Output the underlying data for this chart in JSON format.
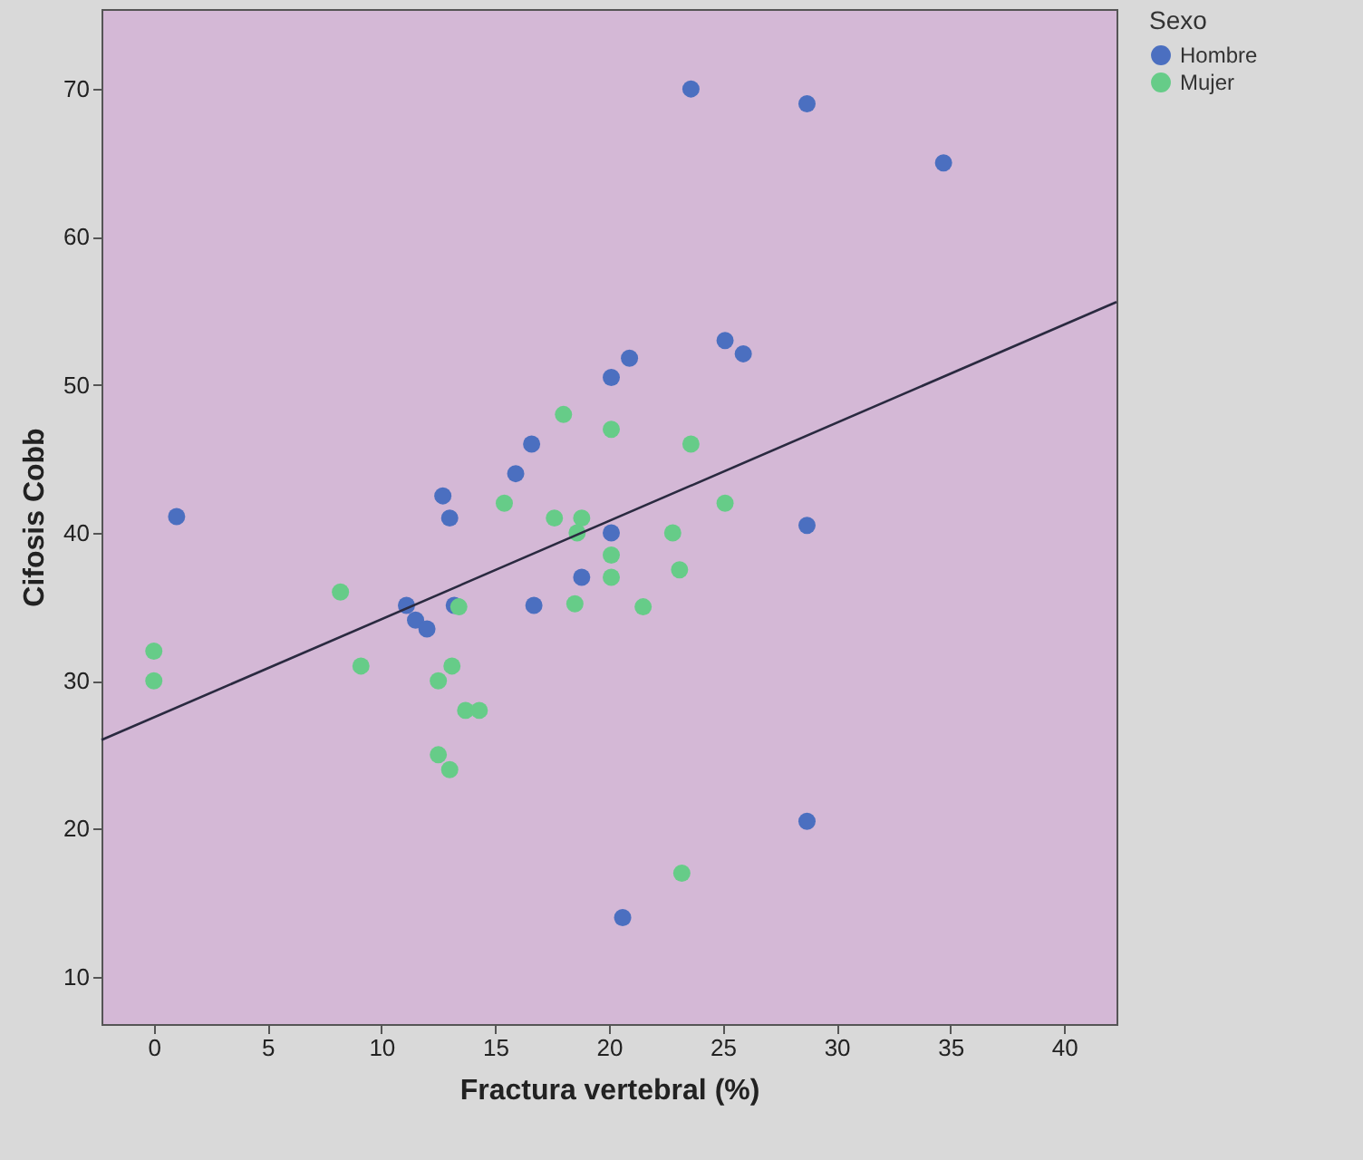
{
  "chart_data": {
    "type": "scatter",
    "xlabel": "Fractura vertebral (%)",
    "ylabel": "Cifosis Cobb",
    "legend_title": "Sexo",
    "legend": "top right",
    "grid": false,
    "marker": "circle",
    "xlim": [
      -2.3,
      42.3
    ],
    "ylim": [
      6.8,
      75.4
    ],
    "xticks": [
      0,
      5,
      10,
      15,
      20,
      25,
      30,
      35,
      40
    ],
    "yticks": [
      10,
      20,
      30,
      40,
      50,
      60,
      70
    ],
    "series": [
      {
        "name": "Hombre",
        "color": "#4b6fc0",
        "x": [
          1.0,
          11.1,
          11.5,
          12.0,
          12.7,
          13.0,
          13.2,
          15.9,
          16.6,
          16.7,
          18.8,
          20.1,
          20.1,
          20.6,
          20.9,
          23.6,
          25.1,
          25.9,
          28.7,
          28.7,
          28.7,
          34.7
        ],
        "values": [
          41.1,
          35.1,
          34.1,
          33.5,
          42.5,
          41.0,
          35.1,
          44.0,
          46.0,
          35.1,
          37.0,
          40.0,
          50.5,
          14.0,
          51.8,
          70.0,
          53.0,
          52.1,
          69.0,
          40.5,
          20.5,
          65.0
        ]
      },
      {
        "name": "Mujer",
        "color": "#66cc88",
        "x": [
          0,
          0,
          8.2,
          9.1,
          12.5,
          12.5,
          13.0,
          13.1,
          13.4,
          13.7,
          14.3,
          15.4,
          17.6,
          18.0,
          18.5,
          18.6,
          18.8,
          20.1,
          20.1,
          20.1,
          21.5,
          22.8,
          23.1,
          23.2,
          23.6,
          25.1
        ],
        "values": [
          32.0,
          30.0,
          36.0,
          31.0,
          30.0,
          25.0,
          24.0,
          31.0,
          35.0,
          28.0,
          28.0,
          42.0,
          41.0,
          48.0,
          35.2,
          40.0,
          41.0,
          47.0,
          38.5,
          37.0,
          35.0,
          40.0,
          37.5,
          17.0,
          46.0,
          42.0
        ]
      },
      {
        "type": "line",
        "marker": "none",
        "color": "#2a2a40",
        "x": [
          -2.3,
          42.3
        ],
        "values": [
          26.0,
          55.6
        ]
      }
    ]
  }
}
